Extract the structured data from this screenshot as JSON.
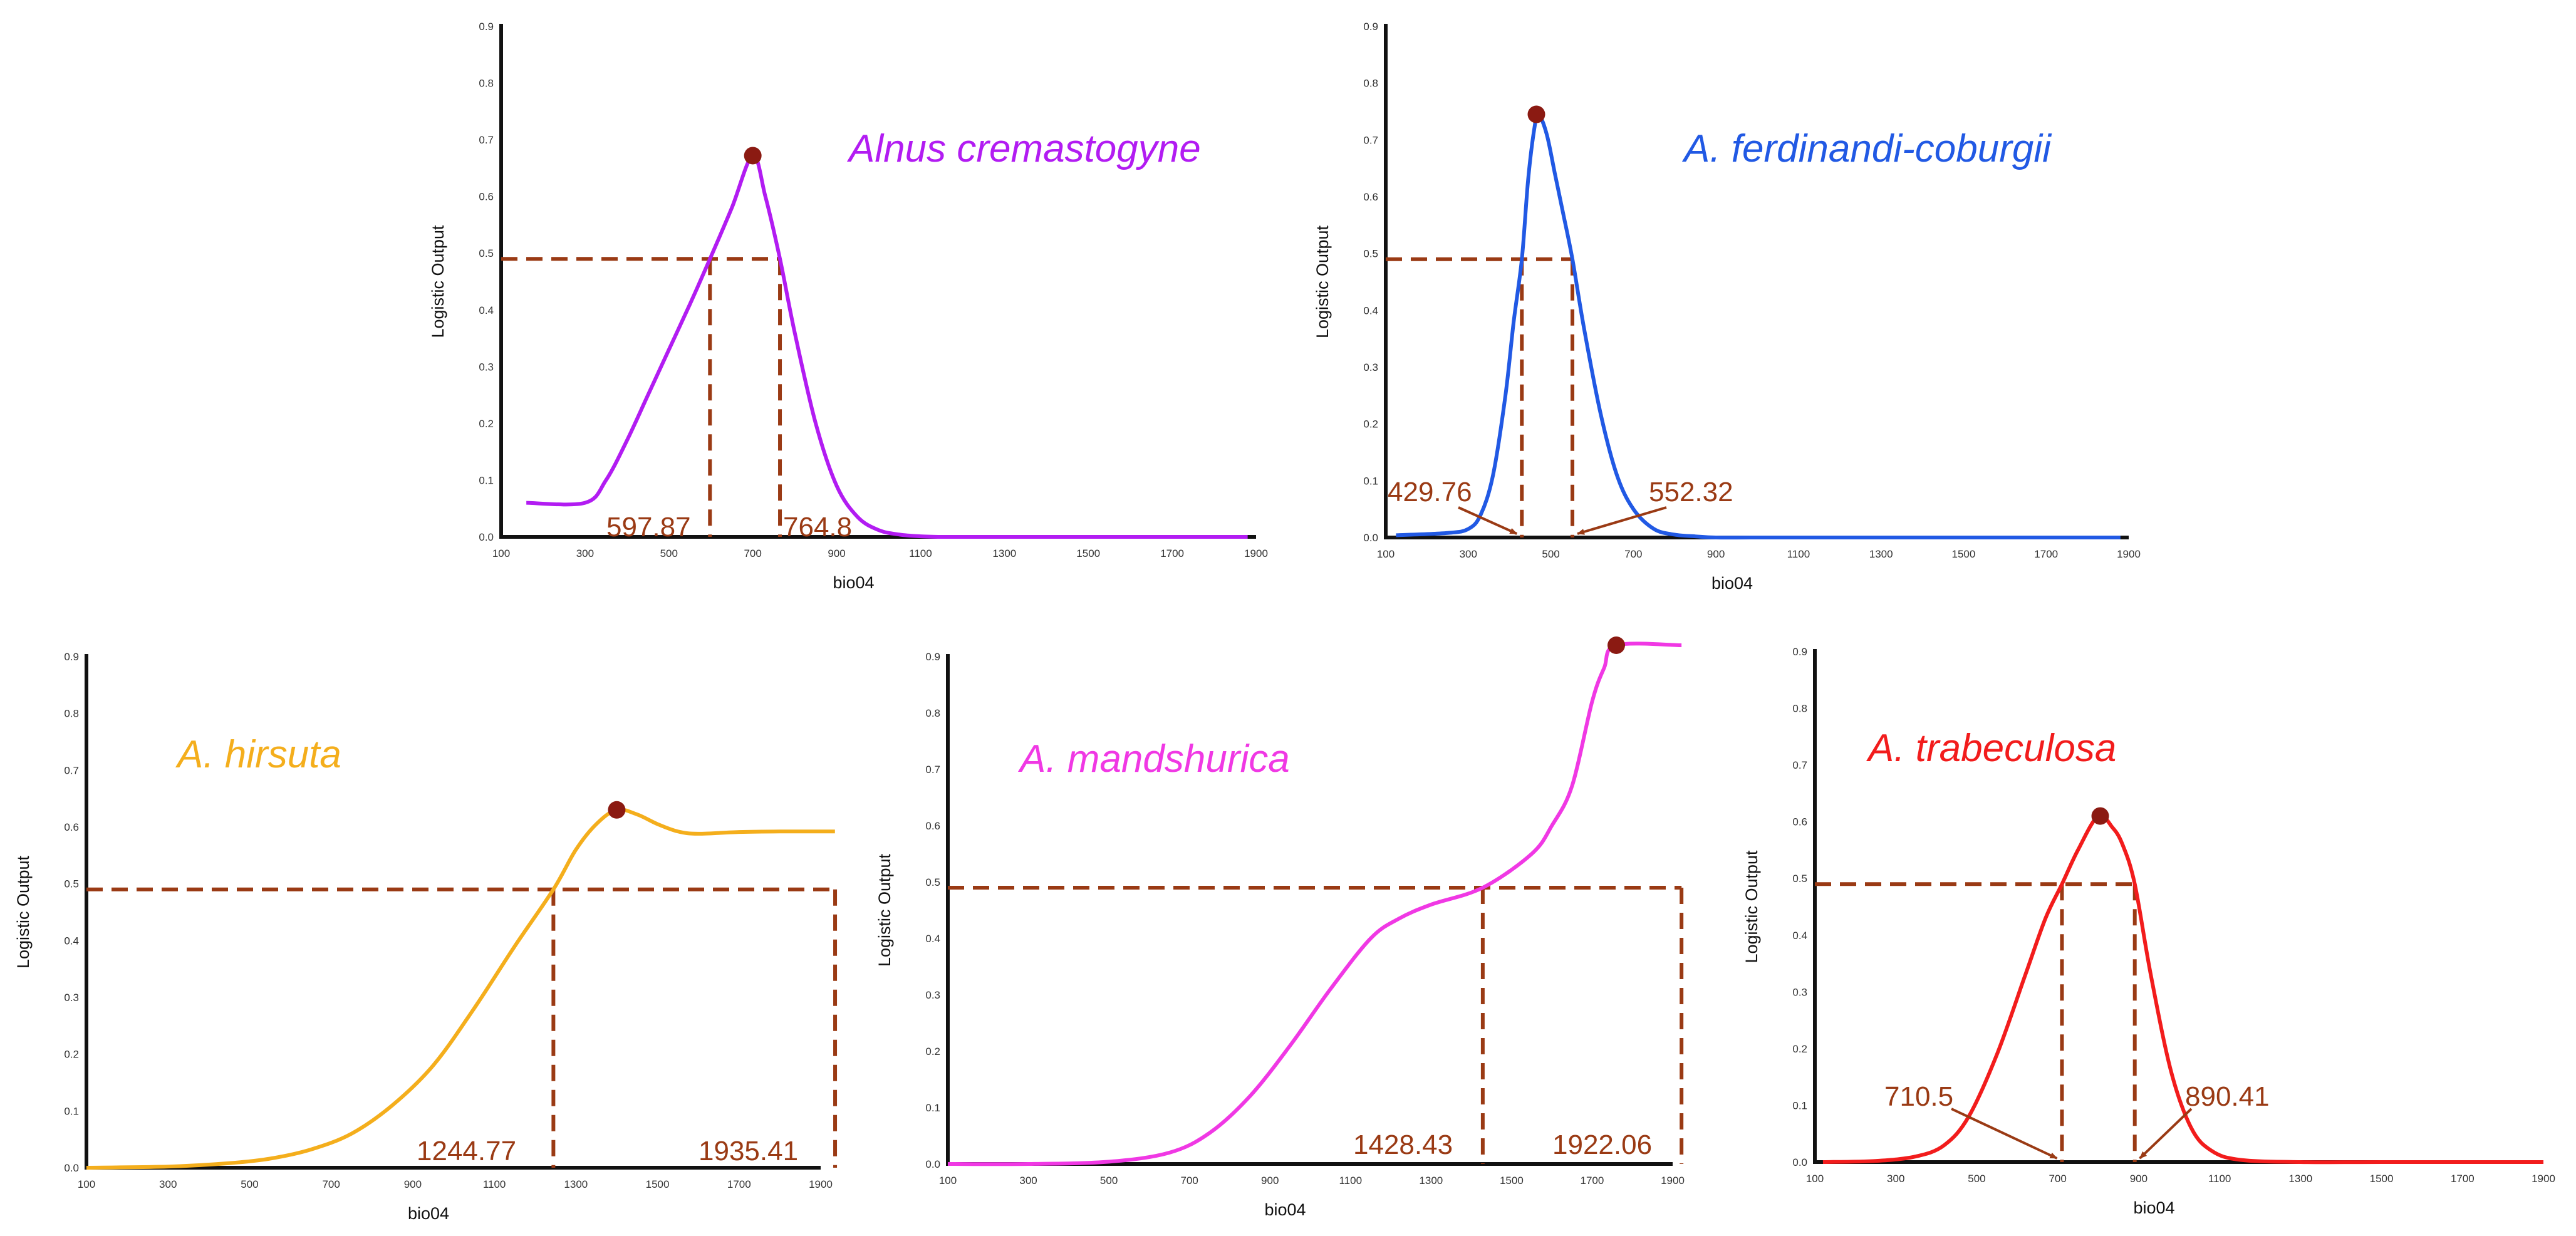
{
  "figure": {
    "x_label": "bio04",
    "y_label": "Logistic Output"
  },
  "colors": {
    "threshold": "#9A3A14",
    "peak_point": "#8B1A12",
    "axis": "#111111"
  },
  "chart_data": [
    {
      "id": "alnus-cremastogyne",
      "type": "line",
      "title": "Alnus cremastogyne",
      "color": "#B21CF2",
      "xlabel": "bio04",
      "ylabel": "Logistic Output",
      "xlim": [
        100,
        1900
      ],
      "ylim": [
        0,
        0.9
      ],
      "xticks": [
        100,
        300,
        500,
        700,
        900,
        1100,
        1300,
        1500,
        1700,
        1900
      ],
      "yticks": [
        0.0,
        0.1,
        0.2,
        0.3,
        0.4,
        0.5,
        0.6,
        0.7,
        0.8,
        0.9
      ],
      "curve": {
        "x": [
          160,
          300,
          350,
          400,
          450,
          500,
          550,
          597.87,
          650,
          700,
          730,
          764.8,
          800,
          850,
          900,
          950,
          1000,
          1050,
          1100,
          1150,
          1200,
          1300,
          1500,
          1700,
          1880
        ],
        "y": [
          0.06,
          0.06,
          0.1,
          0.17,
          0.25,
          0.33,
          0.41,
          0.49,
          0.58,
          0.672,
          0.6,
          0.49,
          0.36,
          0.2,
          0.09,
          0.035,
          0.012,
          0.004,
          0.001,
          0,
          0,
          0,
          0,
          0,
          0
        ]
      },
      "peak": {
        "x": 700,
        "y": 0.672
      },
      "threshold": 0.49,
      "cutoffs": [
        597.87,
        764.8
      ],
      "cutoff_labels": [
        "597.87",
        "764.8"
      ]
    },
    {
      "id": "a-ferdinandi-coburgii",
      "type": "line",
      "title": "A. ferdinandi-coburgii",
      "color": "#2159E4",
      "xlabel": "bio04",
      "ylabel": "Logistic Output",
      "xlim": [
        100,
        1900
      ],
      "ylim": [
        0,
        0.9
      ],
      "xticks": [
        100,
        300,
        500,
        700,
        900,
        1100,
        1300,
        1500,
        1700,
        1900
      ],
      "yticks": [
        0.0,
        0.1,
        0.2,
        0.3,
        0.4,
        0.5,
        0.6,
        0.7,
        0.8,
        0.9
      ],
      "curve": {
        "x": [
          125,
          250,
          300,
          330,
          360,
          390,
          410,
          429.76,
          445,
          460,
          470,
          490,
          510,
          530,
          552.32,
          580,
          620,
          660,
          700,
          750,
          800,
          850,
          900,
          1000,
          1200,
          1500,
          1880
        ],
        "y": [
          0.004,
          0.008,
          0.015,
          0.04,
          0.11,
          0.25,
          0.38,
          0.49,
          0.63,
          0.72,
          0.745,
          0.71,
          0.64,
          0.57,
          0.49,
          0.37,
          0.22,
          0.11,
          0.05,
          0.015,
          0.005,
          0.002,
          0,
          0,
          0,
          0,
          0
        ]
      },
      "peak": {
        "x": 465,
        "y": 0.745
      },
      "threshold": 0.49,
      "cutoffs": [
        429.76,
        552.32
      ],
      "cutoff_labels": [
        "429.76",
        "552.32"
      ],
      "arrows": true
    },
    {
      "id": "a-hirsuta",
      "type": "line",
      "title": "A. hirsuta",
      "color": "#F4AE1C",
      "xlabel": "bio04",
      "ylabel": "Logistic Output",
      "xlim": [
        100,
        1900
      ],
      "ylim": [
        0,
        0.9
      ],
      "xticks": [
        100,
        300,
        500,
        700,
        900,
        1100,
        1300,
        1500,
        1700,
        1900
      ],
      "yticks": [
        0.0,
        0.1,
        0.2,
        0.3,
        0.4,
        0.5,
        0.6,
        0.7,
        0.8,
        0.9
      ],
      "curve": {
        "x": [
          100,
          300,
          450,
          550,
          650,
          750,
          850,
          950,
          1050,
          1150,
          1244.77,
          1300,
          1350,
          1400,
          1450,
          1500,
          1550,
          1600,
          1700,
          1800,
          1935
        ],
        "y": [
          0,
          0.002,
          0.008,
          0.016,
          0.032,
          0.06,
          0.11,
          0.18,
          0.28,
          0.39,
          0.49,
          0.56,
          0.605,
          0.63,
          0.622,
          0.605,
          0.592,
          0.588,
          0.591,
          0.592,
          0.592
        ]
      },
      "peak": {
        "x": 1400,
        "y": 0.63
      },
      "threshold": 0.49,
      "cutoffs": [
        1244.77,
        1935.41
      ],
      "cutoff_labels": [
        "1244.77",
        "1935.41"
      ]
    },
    {
      "id": "a-mandshurica",
      "type": "line",
      "title": "A. mandshurica",
      "color": "#F038E4",
      "xlabel": "bio04",
      "ylabel": "Logistic Output",
      "xlim": [
        100,
        1900
      ],
      "ylim": [
        0,
        0.9
      ],
      "xticks": [
        100,
        300,
        500,
        700,
        900,
        1100,
        1300,
        1500,
        1700,
        1900
      ],
      "yticks": [
        0.0,
        0.1,
        0.2,
        0.3,
        0.4,
        0.5,
        0.6,
        0.7,
        0.8,
        0.9
      ],
      "curve": {
        "x": [
          100,
          300,
          500,
          650,
          750,
          850,
          950,
          1050,
          1150,
          1220,
          1300,
          1428.43,
          1550,
          1600,
          1650,
          1700,
          1730,
          1760,
          1922
        ],
        "y": [
          0,
          0,
          0.004,
          0.02,
          0.055,
          0.12,
          0.21,
          0.31,
          0.4,
          0.435,
          0.46,
          0.49,
          0.55,
          0.6,
          0.67,
          0.82,
          0.88,
          0.92,
          0.92
        ]
      },
      "peak": {
        "x": 1760,
        "y": 0.92
      },
      "threshold": 0.49,
      "cutoffs": [
        1428.43,
        1922.06
      ],
      "cutoff_labels": [
        "1428.43",
        "1922.06"
      ]
    },
    {
      "id": "a-trabeculosa",
      "type": "line",
      "title": "A. trabeculosa",
      "color": "#F21C1C",
      "xlabel": "bio04",
      "ylabel": "Logistic Output",
      "xlim": [
        100,
        1900
      ],
      "ylim": [
        0,
        0.9
      ],
      "xticks": [
        100,
        300,
        500,
        700,
        900,
        1100,
        1300,
        1500,
        1700,
        1900
      ],
      "yticks": [
        0.0,
        0.1,
        0.2,
        0.3,
        0.4,
        0.5,
        0.6,
        0.7,
        0.8,
        0.9
      ],
      "curve": {
        "x": [
          120,
          250,
          350,
          420,
          480,
          550,
          620,
          670,
          710.5,
          750,
          800,
          835,
          860,
          890.41,
          930,
          980,
          1030,
          1080,
          1150,
          1300,
          1500,
          1900
        ],
        "y": [
          0,
          0.002,
          0.01,
          0.03,
          0.08,
          0.19,
          0.33,
          0.43,
          0.49,
          0.55,
          0.61,
          0.59,
          0.56,
          0.49,
          0.33,
          0.16,
          0.06,
          0.02,
          0.004,
          0,
          0,
          0
        ]
      },
      "peak": {
        "x": 805,
        "y": 0.61
      },
      "threshold": 0.49,
      "cutoffs": [
        710.5,
        890.41
      ],
      "cutoff_labels": [
        "710.5",
        "890.41"
      ],
      "arrows": true
    }
  ]
}
